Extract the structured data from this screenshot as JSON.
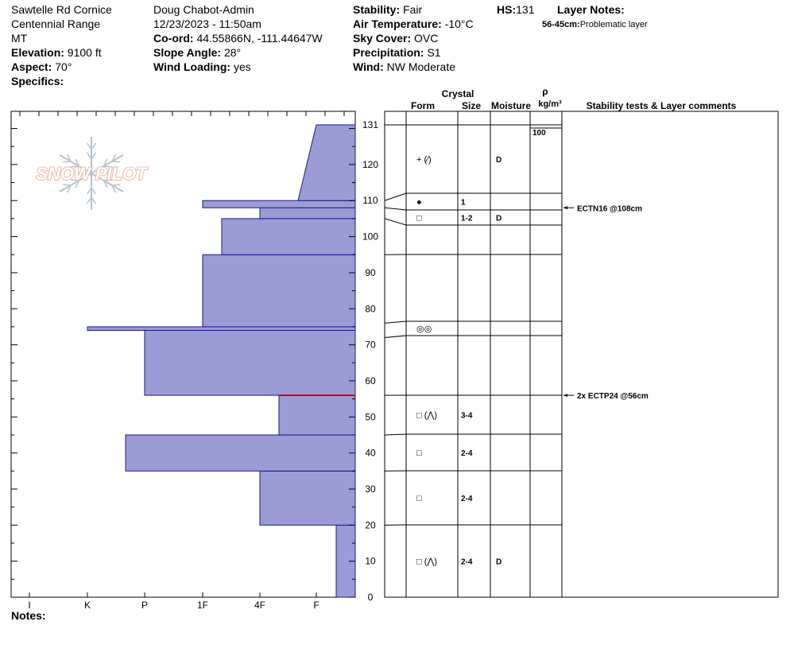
{
  "header": {
    "location": "Sawtelle Rd Cornice",
    "range": "Centennial Range",
    "state": "MT",
    "elevation_label": "Elevation:",
    "elevation_value": "9100 ft",
    "aspect_label": "Aspect:",
    "aspect_value": "70°",
    "specifics_label": "Specifics:",
    "observer": "Doug Chabot-Admin",
    "datetime": "12/23/2023 - 11:50am",
    "coord_label": "Co-ord:",
    "coord_value": "44.55866N, -111.44647W",
    "slope_label": "Slope Angle:",
    "slope_value": "28°",
    "wind_loading_label": "Wind Loading:",
    "wind_loading_value": "yes",
    "stability_label": "Stability:",
    "stability_value": "Fair",
    "air_temp_label": "Air Temperature:",
    "air_temp_value": "-10°C",
    "sky_label": "Sky Cover:",
    "sky_value": "OVC",
    "precip_label": "Precipitation:",
    "precip_value": "S1",
    "wind_label": "Wind:",
    "wind_value": " NW Moderate",
    "hs_label": "HS:",
    "hs_value": "131",
    "layer_notes_label": "Layer Notes:",
    "layer_note_range": "56-45cm:",
    "layer_note_text": "Problematic layer"
  },
  "notes_label": "Notes:",
  "logo_text": "SNOW PILOT",
  "columns": {
    "crystal": "Crystal",
    "form": "Form",
    "size": "Size",
    "moisture": "Moisture",
    "rho": "ρ",
    "density_unit": "kg/m³",
    "stability": "Stability tests & Layer comments"
  },
  "colors": {
    "fill": "#9b9bd6",
    "outline": "#1a1a8c",
    "marker": "#cc0000",
    "logo": "#e8b8a4",
    "snowflake": "#b6c2cc"
  },
  "chart_data": {
    "type": "area",
    "title": "",
    "xlabel": "",
    "ylabel": "",
    "ylim": [
      0,
      131
    ],
    "y_ticks": [
      "0",
      "10",
      "20",
      "30",
      "40",
      "50",
      "60",
      "70",
      "80",
      "90",
      "100",
      "110",
      "120",
      "131"
    ],
    "x_ticks": [
      "I",
      "K",
      "P",
      "1F",
      "4F",
      "F"
    ],
    "hardness_layers": [
      {
        "bottom": 0,
        "top": 20,
        "hardness": "F-"
      },
      {
        "bottom": 20,
        "top": 35,
        "hardness": "4F"
      },
      {
        "bottom": 35,
        "top": 45,
        "hardness": "P+"
      },
      {
        "bottom": 45,
        "top": 56,
        "hardness": "4F-"
      },
      {
        "bottom": 56,
        "top": 74,
        "hardness": "P"
      },
      {
        "bottom": 74,
        "top": 75,
        "hardness": "K"
      },
      {
        "bottom": 75,
        "top": 95,
        "hardness": "1F"
      },
      {
        "bottom": 95,
        "top": 105,
        "hardness": "1F-"
      },
      {
        "bottom": 105,
        "top": 108,
        "hardness": "4F"
      },
      {
        "bottom": 108,
        "top": 110,
        "hardness": "1F"
      },
      {
        "bottom": 110,
        "top": 131,
        "hardness": "F+ to 4F+",
        "sloped": true
      }
    ],
    "marker_depth": 56,
    "density": [
      {
        "depth": 131,
        "value": "100"
      }
    ],
    "layers": [
      {
        "top": 131,
        "bottom": 110,
        "form": "+ (⁄)",
        "size": "",
        "moisture": "D"
      },
      {
        "top": 110,
        "bottom": 108,
        "form": "●",
        "size": "1",
        "moisture": ""
      },
      {
        "top": 108,
        "bottom": 105,
        "form": "□",
        "size": "1-2",
        "moisture": "D"
      },
      {
        "top": 105,
        "bottom": 95,
        "form": "",
        "size": "",
        "moisture": ""
      },
      {
        "top": 95,
        "bottom": 76,
        "form": "",
        "size": "",
        "moisture": ""
      },
      {
        "top": 76,
        "bottom": 72,
        "form": "◎◎",
        "size": "",
        "moisture": ""
      },
      {
        "top": 72,
        "bottom": 56,
        "form": "",
        "size": "",
        "moisture": ""
      },
      {
        "top": 56,
        "bottom": 45,
        "form": "□ (⋀)",
        "size": "3-4",
        "moisture": ""
      },
      {
        "top": 45,
        "bottom": 35,
        "form": "□",
        "size": "2-4",
        "moisture": ""
      },
      {
        "top": 35,
        "bottom": 20,
        "form": "□",
        "size": "2-4",
        "moisture": ""
      },
      {
        "top": 20,
        "bottom": 0,
        "form": "□ (⋀)",
        "size": "2-4",
        "moisture": "D"
      }
    ],
    "tests": [
      {
        "depth": 108,
        "label": "ECTN16 @108cm"
      },
      {
        "depth": 56,
        "label": "2x ECTP24 @56cm"
      }
    ]
  }
}
